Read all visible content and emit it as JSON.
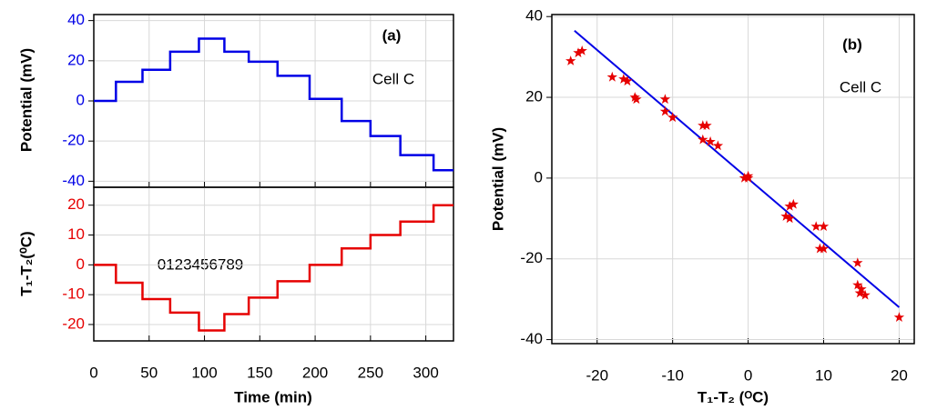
{
  "chart_data": [
    {
      "type": "line",
      "title": "(a)",
      "annotation": "Cell C",
      "ylabel": "Potential (mV)",
      "color": "#0000e6",
      "x": [
        0,
        20,
        20,
        44,
        44,
        69,
        69,
        95,
        95,
        118,
        118,
        140,
        140,
        166,
        166,
        195,
        195,
        224,
        224,
        250,
        250,
        277,
        277,
        307,
        307,
        325
      ],
      "y": [
        0,
        0,
        9.5,
        9.5,
        15.5,
        15.5,
        24.5,
        24.5,
        31,
        31,
        24.5,
        24.5,
        19.5,
        19.5,
        12.5,
        12.5,
        1,
        1,
        -10,
        -10,
        -17.5,
        -17.5,
        -27,
        -27,
        -34.5,
        -34.5
      ],
      "xlim": [
        0,
        325
      ],
      "ylim": [
        -43,
        43
      ],
      "yticks": [
        -40,
        -20,
        0,
        20,
        40
      ],
      "grid": true
    },
    {
      "type": "line",
      "annotation": "0123456789",
      "ylabel": "T₁-T₂(⁰C)",
      "xlabel": "Time (min)",
      "color": "#e60000",
      "x": [
        0,
        20,
        20,
        44,
        44,
        69,
        69,
        95,
        95,
        118,
        118,
        140,
        140,
        166,
        166,
        195,
        195,
        224,
        224,
        250,
        250,
        277,
        277,
        307,
        307,
        325
      ],
      "y": [
        0,
        0,
        -6,
        -6,
        -11.5,
        -11.5,
        -16,
        -16,
        -22,
        -22,
        -16.5,
        -16.5,
        -11,
        -11,
        -5.5,
        -5.5,
        0,
        0,
        5.5,
        5.5,
        10,
        10,
        14.5,
        14.5,
        20,
        20
      ],
      "xlim": [
        0,
        325
      ],
      "ylim": [
        -25.5,
        26
      ],
      "xticks": [
        0,
        50,
        100,
        150,
        200,
        250,
        300
      ],
      "yticks": [
        -20,
        -10,
        0,
        10,
        20
      ],
      "grid": true
    },
    {
      "type": "scatter",
      "title": "(b)",
      "annotation": "Cell C",
      "ylabel": "Potential (mV)",
      "xlabel": "T₁-T₂ (ᴼC)",
      "color": "#e60000",
      "x": [
        -23.5,
        -22.5,
        -22,
        -18,
        -16.5,
        -16,
        -15,
        -14.8,
        -11,
        -11,
        -10,
        -6,
        -5.5,
        -6,
        -5,
        -4,
        0,
        0,
        -0.5,
        5,
        5.5,
        6,
        5.5,
        9,
        10,
        10,
        9.5,
        14.5,
        14.5,
        15,
        14.8,
        15.5,
        20
      ],
      "y": [
        29,
        31,
        31.5,
        25,
        24.5,
        24,
        20,
        19.5,
        19.5,
        16.5,
        15,
        13,
        13,
        9.5,
        9,
        8,
        0.5,
        0,
        0,
        -9.5,
        -7,
        -6.5,
        -10,
        -12,
        -12,
        -17.5,
        -17.5,
        -21,
        -26.5,
        -27.5,
        -28.5,
        -29,
        -34.5
      ],
      "fit": {
        "color": "#0000e6",
        "x": [
          -23,
          20
        ],
        "y": [
          36.5,
          -32
        ]
      },
      "xlim": [
        -26,
        22
      ],
      "ylim": [
        -41,
        40.5
      ],
      "xticks": [
        -20,
        -10,
        0,
        10,
        20
      ],
      "yticks": [
        -40,
        -20,
        0,
        20,
        40
      ],
      "grid": true
    }
  ]
}
